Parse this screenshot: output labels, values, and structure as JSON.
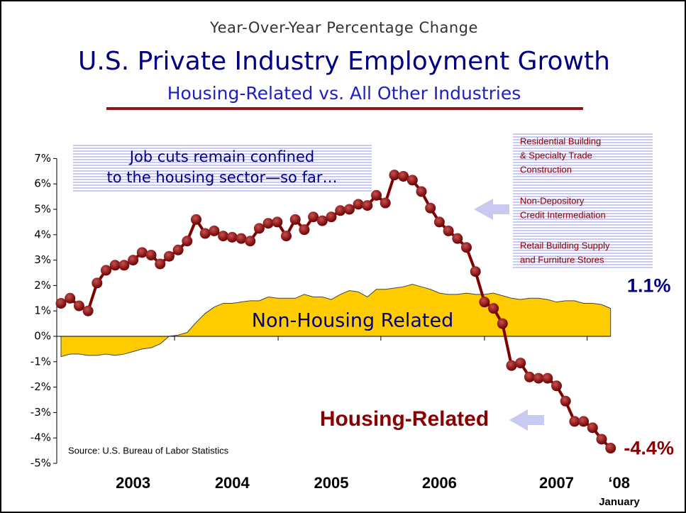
{
  "chart_data": {
    "type": "line",
    "supertitle": "Year-Over-Year Percentage Change",
    "title": "U.S. Private Industry Employment Growth",
    "subtitle": "Housing-Related vs. All Other Industries",
    "categories": [
      null,
      null,
      null,
      null,
      null,
      null,
      null,
      null,
      "2003",
      null,
      null,
      null,
      null,
      null,
      null,
      null,
      null,
      null,
      null,
      "2004",
      null,
      null,
      null,
      null,
      null,
      null,
      null,
      null,
      null,
      null,
      "2005",
      null,
      null,
      null,
      null,
      null,
      null,
      null,
      null,
      null,
      null,
      null,
      "2006",
      null,
      null,
      null,
      null,
      null,
      null,
      null,
      null,
      null,
      null,
      null,
      null,
      "2007",
      null,
      null,
      null,
      null,
      null,
      "‘08"
    ],
    "series": [
      {
        "name": "Non-Housing Related",
        "color": "#ffcc00",
        "style": "area",
        "values": [
          -0.8,
          -0.7,
          -0.7,
          -0.75,
          -0.75,
          -0.7,
          -0.75,
          -0.7,
          -0.6,
          -0.5,
          -0.45,
          -0.3,
          0.0,
          0.05,
          0.15,
          0.55,
          0.9,
          1.15,
          1.3,
          1.3,
          1.35,
          1.4,
          1.4,
          1.55,
          1.5,
          1.5,
          1.5,
          1.65,
          1.55,
          1.55,
          1.45,
          1.65,
          1.8,
          1.75,
          1.55,
          1.85,
          1.85,
          1.9,
          1.95,
          2.05,
          1.95,
          1.85,
          1.7,
          1.65,
          1.65,
          1.7,
          1.65,
          1.65,
          1.7,
          1.6,
          1.5,
          1.45,
          1.5,
          1.5,
          1.45,
          1.35,
          1.4,
          1.4,
          1.3,
          1.3,
          1.25,
          1.1
        ],
        "value_labels": [
          null,
          null,
          null,
          null,
          null,
          null,
          null,
          null,
          null,
          null,
          null,
          null,
          null,
          null,
          null,
          null,
          null,
          null,
          null,
          null,
          null,
          null,
          null,
          null,
          null,
          null,
          null,
          null,
          null,
          null,
          null,
          null,
          null,
          null,
          null,
          null,
          null,
          null,
          null,
          null,
          null,
          null,
          null,
          null,
          null,
          null,
          null,
          null,
          null,
          null,
          null,
          null,
          null,
          null,
          null,
          null,
          null,
          null,
          null,
          null,
          null,
          "1.1%"
        ]
      },
      {
        "name": "Housing-Related",
        "color": "#800000",
        "style": "line",
        "values": [
          1.3,
          1.5,
          1.2,
          1.0,
          2.1,
          2.6,
          2.8,
          2.8,
          3.0,
          3.3,
          3.2,
          2.85,
          3.15,
          3.4,
          3.75,
          4.6,
          4.05,
          4.15,
          3.95,
          3.9,
          3.85,
          3.75,
          4.25,
          4.45,
          4.5,
          3.95,
          4.6,
          4.2,
          4.7,
          4.55,
          4.7,
          4.95,
          5.0,
          5.2,
          5.15,
          5.55,
          5.25,
          6.35,
          6.3,
          6.15,
          5.7,
          5.05,
          4.5,
          4.15,
          3.85,
          3.5,
          2.55,
          1.35,
          1.1,
          0.5,
          -1.15,
          -1.05,
          -1.6,
          -1.65,
          -1.65,
          -1.95,
          -2.55,
          -3.35,
          -3.35,
          -3.6,
          -4.05,
          -4.4
        ],
        "value_labels": [
          null,
          null,
          null,
          null,
          null,
          null,
          null,
          null,
          null,
          null,
          null,
          null,
          null,
          null,
          null,
          null,
          null,
          null,
          null,
          null,
          null,
          null,
          null,
          null,
          null,
          null,
          null,
          null,
          null,
          null,
          null,
          null,
          null,
          null,
          null,
          null,
          null,
          null,
          null,
          null,
          null,
          null,
          null,
          null,
          null,
          null,
          null,
          null,
          null,
          null,
          null,
          null,
          null,
          null,
          null,
          null,
          null,
          null,
          null,
          null,
          null,
          "-4.4%"
        ]
      }
    ],
    "ylim": [
      -5,
      7
    ],
    "yticks": [
      {
        "value": 7,
        "label": "7%"
      },
      {
        "value": 6,
        "label": "6%"
      },
      {
        "value": 5,
        "label": "5%"
      },
      {
        "value": 4,
        "label": "4%"
      },
      {
        "value": 3,
        "label": "3%"
      },
      {
        "value": 2,
        "label": "2%"
      },
      {
        "value": 1,
        "label": "1%"
      },
      {
        "value": 0,
        "label": "0%"
      },
      {
        "value": -1,
        "label": "-1%"
      },
      {
        "value": -2,
        "label": "-2%"
      },
      {
        "value": -3,
        "label": "-3%"
      },
      {
        "value": -4,
        "label": "-4%"
      },
      {
        "value": -5,
        "label": "-5%"
      }
    ],
    "annotations": {
      "callout": [
        "Job cuts remain confined",
        "to the housing sector—so far…"
      ],
      "industries": [
        "Residential Building",
        "& Specialty Trade",
        "Construction",
        "Non-Depository",
        "Credit Intermediation",
        "Retail Building Supply",
        "and Furniture Stores"
      ],
      "source": "Source:  U.S. Bureau of Labor Statistics",
      "x_note": "January"
    }
  }
}
